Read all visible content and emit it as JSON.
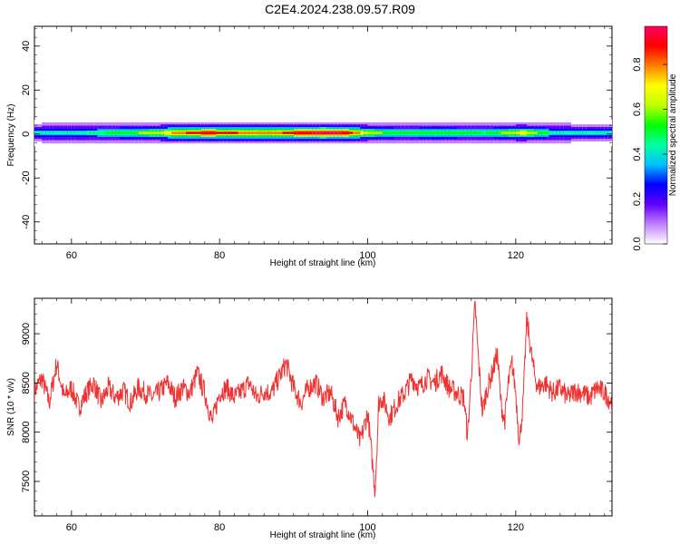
{
  "title": "C2E4.2024.238.09.57.R09",
  "chart_data": [
    {
      "type": "heatmap",
      "xlabel": "Height of straight line (km)",
      "ylabel": "Frequency (Hz)",
      "xlim": [
        55,
        133
      ],
      "ylim": [
        -50,
        49
      ],
      "xticks": [
        60,
        80,
        100,
        120
      ],
      "yticks": [
        -40,
        -20,
        0,
        20,
        40
      ],
      "band_center_hz": 0.5,
      "band_halfwidth_hz": 3,
      "colorbar": {
        "label": "Normalized spectral amplitude",
        "range": [
          0,
          0.97
        ],
        "ticks": [
          0.0,
          0.2,
          0.4,
          0.6,
          0.8
        ],
        "tick_labels": [
          "0.0",
          "0.2",
          "0.4",
          "0.6",
          "0.8"
        ],
        "colors": [
          "#ffffff",
          "#c080ff",
          "#6000ff",
          "#0000ff",
          "#00c0ff",
          "#00ffa0",
          "#00ff00",
          "#c0ff00",
          "#ffff00",
          "#ff8000",
          "#ff0000",
          "#ff0060"
        ]
      },
      "peak_amplitude_by_height": [
        {
          "x": 56,
          "a": 0.45
        },
        {
          "x": 60,
          "a": 0.45
        },
        {
          "x": 64,
          "a": 0.48
        },
        {
          "x": 68,
          "a": 0.55
        },
        {
          "x": 72,
          "a": 0.65
        },
        {
          "x": 74,
          "a": 0.8
        },
        {
          "x": 78,
          "a": 0.9
        },
        {
          "x": 82,
          "a": 0.85
        },
        {
          "x": 86,
          "a": 0.75
        },
        {
          "x": 90,
          "a": 0.88
        },
        {
          "x": 94,
          "a": 0.95
        },
        {
          "x": 97,
          "a": 0.92
        },
        {
          "x": 100,
          "a": 0.65
        },
        {
          "x": 104,
          "a": 0.5
        },
        {
          "x": 110,
          "a": 0.55
        },
        {
          "x": 116,
          "a": 0.48
        },
        {
          "x": 121,
          "a": 0.7
        },
        {
          "x": 125,
          "a": 0.45
        },
        {
          "x": 133,
          "a": 0.42
        }
      ]
    },
    {
      "type": "line",
      "xlabel": "Height of straight line (km)",
      "ylabel": "SNR (10 * v/v)",
      "xlim": [
        55,
        133
      ],
      "ylim": [
        7150,
        9360
      ],
      "xticks": [
        60,
        80,
        100,
        120
      ],
      "yticks": [
        7500,
        8000,
        8500,
        9000
      ],
      "color": "#ee3333",
      "series": [
        {
          "x": 55.0,
          "y": 8420
        },
        {
          "x": 56.0,
          "y": 8550
        },
        {
          "x": 57.0,
          "y": 8300
        },
        {
          "x": 58.0,
          "y": 8700
        },
        {
          "x": 59.0,
          "y": 8350
        },
        {
          "x": 60.0,
          "y": 8450
        },
        {
          "x": 61.0,
          "y": 8250
        },
        {
          "x": 62.0,
          "y": 8400
        },
        {
          "x": 63.0,
          "y": 8500
        },
        {
          "x": 64.0,
          "y": 8300
        },
        {
          "x": 65.0,
          "y": 8450
        },
        {
          "x": 66.0,
          "y": 8350
        },
        {
          "x": 67.0,
          "y": 8420
        },
        {
          "x": 68.0,
          "y": 8300
        },
        {
          "x": 69.0,
          "y": 8450
        },
        {
          "x": 70.0,
          "y": 8400
        },
        {
          "x": 71.0,
          "y": 8350
        },
        {
          "x": 72.0,
          "y": 8420
        },
        {
          "x": 73.0,
          "y": 8500
        },
        {
          "x": 74.0,
          "y": 8350
        },
        {
          "x": 75.0,
          "y": 8450
        },
        {
          "x": 76.0,
          "y": 8400
        },
        {
          "x": 77.0,
          "y": 8600
        },
        {
          "x": 78.0,
          "y": 8400
        },
        {
          "x": 79.0,
          "y": 8100
        },
        {
          "x": 80.0,
          "y": 8400
        },
        {
          "x": 81.0,
          "y": 8450
        },
        {
          "x": 82.0,
          "y": 8350
        },
        {
          "x": 83.0,
          "y": 8420
        },
        {
          "x": 84.0,
          "y": 8500
        },
        {
          "x": 85.0,
          "y": 8350
        },
        {
          "x": 86.0,
          "y": 8420
        },
        {
          "x": 87.0,
          "y": 8400
        },
        {
          "x": 88.0,
          "y": 8550
        },
        {
          "x": 89.0,
          "y": 8700
        },
        {
          "x": 90.0,
          "y": 8450
        },
        {
          "x": 91.0,
          "y": 8300
        },
        {
          "x": 92.0,
          "y": 8450
        },
        {
          "x": 93.0,
          "y": 8500
        },
        {
          "x": 94.0,
          "y": 8350
        },
        {
          "x": 95.0,
          "y": 8400
        },
        {
          "x": 96.0,
          "y": 8150
        },
        {
          "x": 97.0,
          "y": 8300
        },
        {
          "x": 98.0,
          "y": 8100
        },
        {
          "x": 99.0,
          "y": 7900
        },
        {
          "x": 100.0,
          "y": 8200
        },
        {
          "x": 101.0,
          "y": 7400
        },
        {
          "x": 101.5,
          "y": 8300
        },
        {
          "x": 102.0,
          "y": 8350
        },
        {
          "x": 103.0,
          "y": 8150
        },
        {
          "x": 104.0,
          "y": 8300
        },
        {
          "x": 105.0,
          "y": 8400
        },
        {
          "x": 106.0,
          "y": 8550
        },
        {
          "x": 107.0,
          "y": 8450
        },
        {
          "x": 108.0,
          "y": 8550
        },
        {
          "x": 109.0,
          "y": 8500
        },
        {
          "x": 110.0,
          "y": 8600
        },
        {
          "x": 111.0,
          "y": 8450
        },
        {
          "x": 112.0,
          "y": 8400
        },
        {
          "x": 113.0,
          "y": 8350
        },
        {
          "x": 113.5,
          "y": 7950
        },
        {
          "x": 114.0,
          "y": 8600
        },
        {
          "x": 114.5,
          "y": 9300
        },
        {
          "x": 115.0,
          "y": 8700
        },
        {
          "x": 115.5,
          "y": 8200
        },
        {
          "x": 116.0,
          "y": 8400
        },
        {
          "x": 117.0,
          "y": 8650
        },
        {
          "x": 117.5,
          "y": 8800
        },
        {
          "x": 118.0,
          "y": 8300
        },
        {
          "x": 118.5,
          "y": 8100
        },
        {
          "x": 119.0,
          "y": 8500
        },
        {
          "x": 119.5,
          "y": 8700
        },
        {
          "x": 120.0,
          "y": 8400
        },
        {
          "x": 120.5,
          "y": 7900
        },
        {
          "x": 121.0,
          "y": 8300
        },
        {
          "x": 121.5,
          "y": 9150
        },
        {
          "x": 122.0,
          "y": 8850
        },
        {
          "x": 122.5,
          "y": 8600
        },
        {
          "x": 123.0,
          "y": 8450
        },
        {
          "x": 124.0,
          "y": 8500
        },
        {
          "x": 125.0,
          "y": 8400
        },
        {
          "x": 126.0,
          "y": 8450
        },
        {
          "x": 127.0,
          "y": 8350
        },
        {
          "x": 128.0,
          "y": 8420
        },
        {
          "x": 129.0,
          "y": 8400
        },
        {
          "x": 130.0,
          "y": 8350
        },
        {
          "x": 131.0,
          "y": 8450
        },
        {
          "x": 132.0,
          "y": 8400
        },
        {
          "x": 133.0,
          "y": 8300
        }
      ]
    }
  ]
}
